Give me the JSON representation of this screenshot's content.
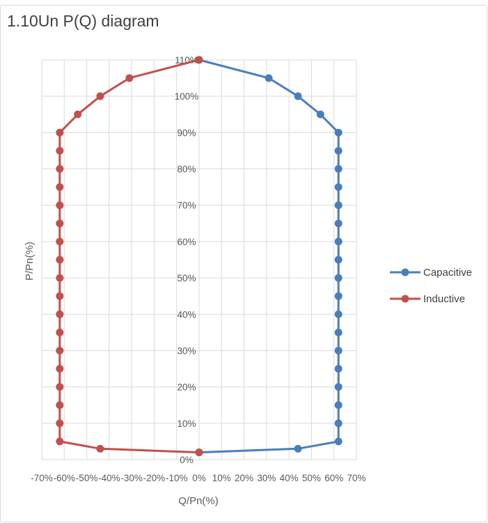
{
  "chart_data": {
    "type": "scatter",
    "title": "1.10Un P(Q) diagram",
    "xlabel": "Q/Pn(%)",
    "ylabel": "P/Pn(%)",
    "xlim": [
      -70,
      70
    ],
    "ylim": [
      0,
      110
    ],
    "x_ticks": [
      "-70%",
      "-60%",
      "-50%",
      "-40%",
      "-30%",
      "-20%",
      "-10%",
      "0%",
      "10%",
      "20%",
      "30%",
      "40%",
      "50%",
      "60%",
      "70%"
    ],
    "y_ticks": [
      "0%",
      "10%",
      "20%",
      "30%",
      "40%",
      "50%",
      "60%",
      "70%",
      "80%",
      "90%",
      "100%",
      "110%"
    ],
    "grid": true,
    "legend_position": "right",
    "series": [
      {
        "name": "Capacitive",
        "color": "#4a7ebb",
        "points": [
          [
            0,
            2
          ],
          [
            44,
            3
          ],
          [
            62,
            5
          ],
          [
            62,
            10
          ],
          [
            62,
            15
          ],
          [
            62,
            20
          ],
          [
            62,
            25
          ],
          [
            62,
            30
          ],
          [
            62,
            35
          ],
          [
            62,
            40
          ],
          [
            62,
            45
          ],
          [
            62,
            50
          ],
          [
            62,
            55
          ],
          [
            62,
            60
          ],
          [
            62,
            65
          ],
          [
            62,
            70
          ],
          [
            62,
            75
          ],
          [
            62,
            80
          ],
          [
            62,
            85
          ],
          [
            62,
            90
          ],
          [
            54,
            95
          ],
          [
            44,
            100
          ],
          [
            31,
            105
          ],
          [
            0,
            110
          ]
        ]
      },
      {
        "name": "Inductive",
        "color": "#c0504d",
        "points": [
          [
            0,
            2
          ],
          [
            -44,
            3
          ],
          [
            -62,
            5
          ],
          [
            -62,
            10
          ],
          [
            -62,
            15
          ],
          [
            -62,
            20
          ],
          [
            -62,
            25
          ],
          [
            -62,
            30
          ],
          [
            -62,
            35
          ],
          [
            -62,
            40
          ],
          [
            -62,
            45
          ],
          [
            -62,
            50
          ],
          [
            -62,
            55
          ],
          [
            -62,
            60
          ],
          [
            -62,
            65
          ],
          [
            -62,
            70
          ],
          [
            -62,
            75
          ],
          [
            -62,
            80
          ],
          [
            -62,
            85
          ],
          [
            -62,
            90
          ],
          [
            -54,
            95
          ],
          [
            -44,
            100
          ],
          [
            -31,
            105
          ],
          [
            0,
            110
          ]
        ]
      }
    ]
  }
}
